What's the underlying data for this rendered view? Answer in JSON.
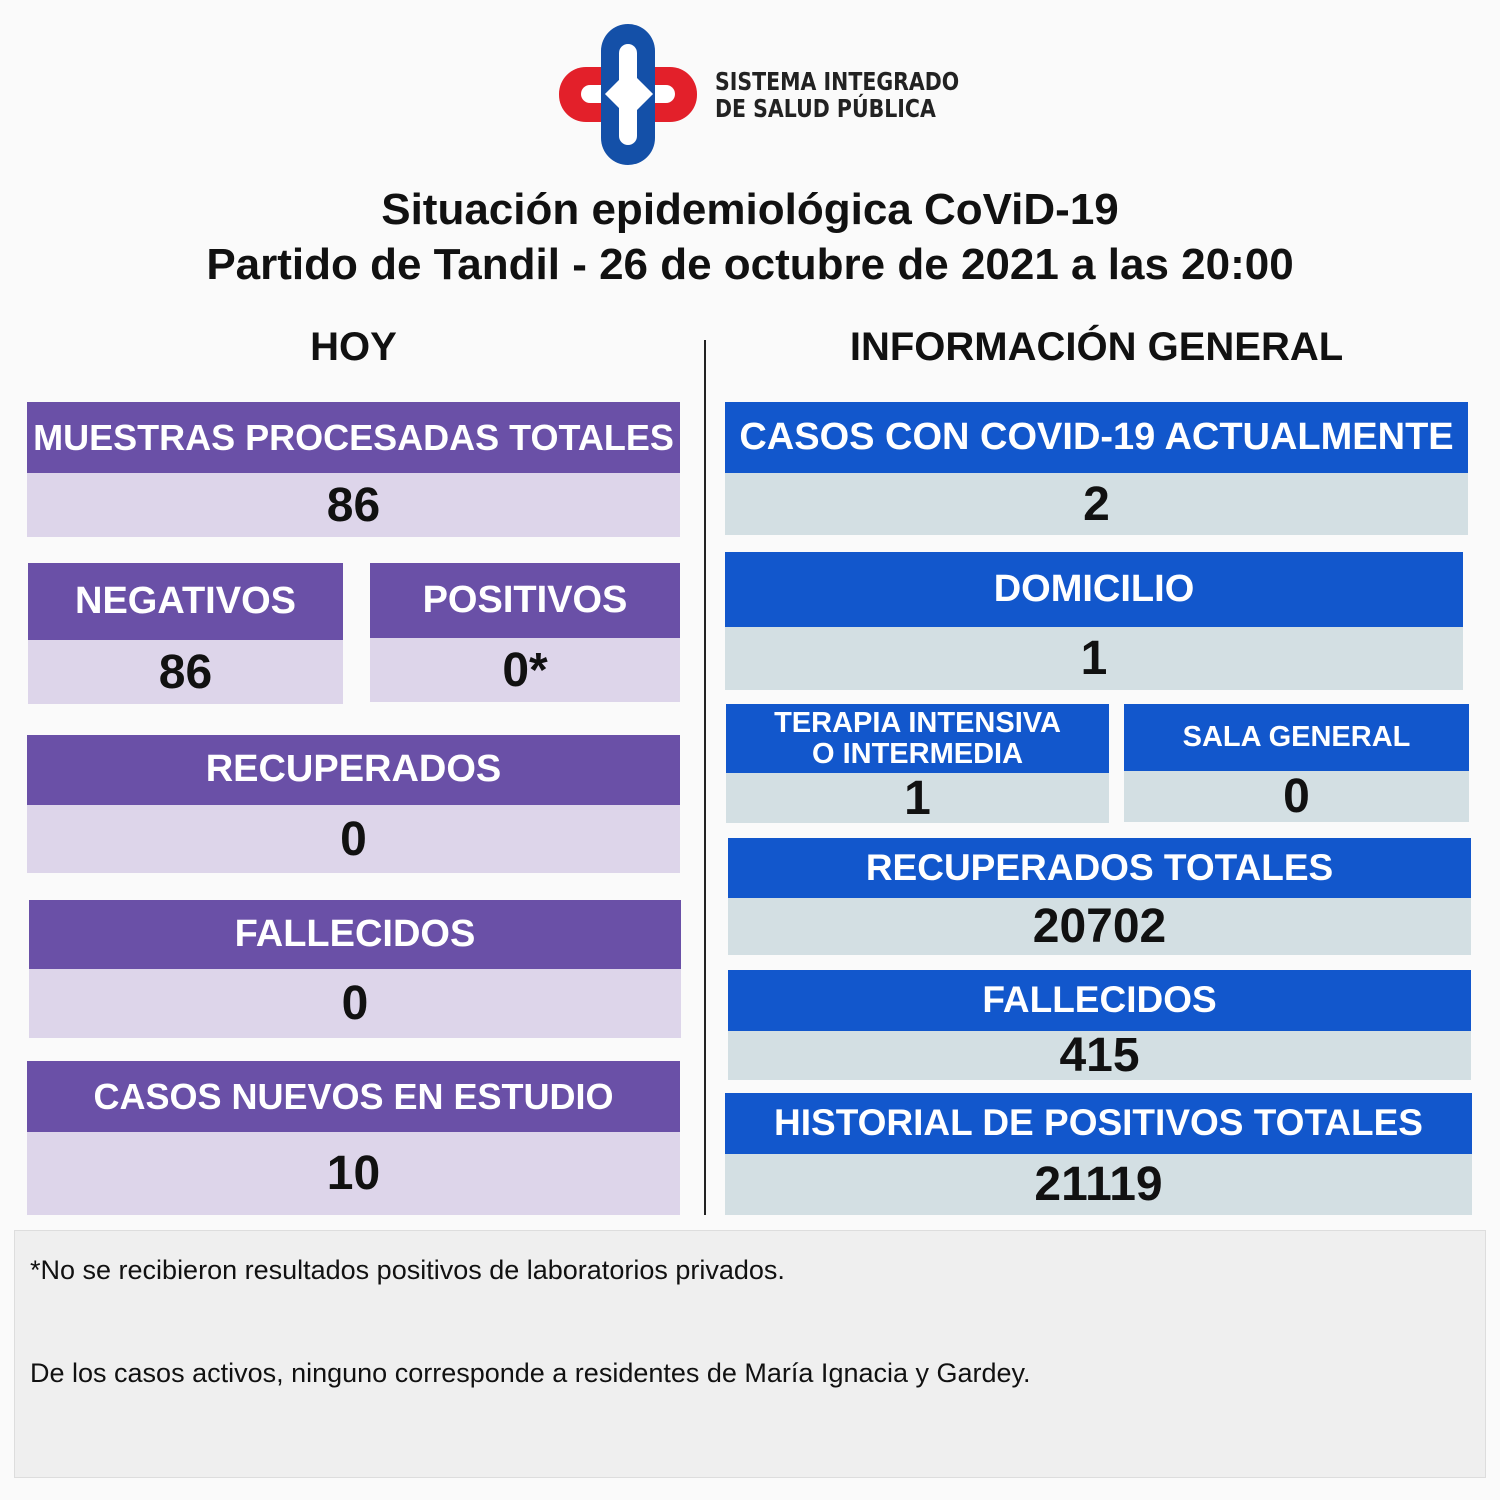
{
  "logo": {
    "line1": "SISTEMA INTEGRADO",
    "line2": "DE SALUD PÚBLICA",
    "colors": {
      "red": "#e3202a",
      "blue": "#1450a8"
    }
  },
  "title": {
    "line1": "Situación epidemiológica CoViD-19",
    "line2": "Partido de Tandil - 26 de octubre de 2021 a las 20:00"
  },
  "hoy": {
    "heading": "HOY",
    "muestras": {
      "label": "MUESTRAS PROCESADAS TOTALES",
      "value": "86"
    },
    "negativos": {
      "label": "NEGATIVOS",
      "value": "86"
    },
    "positivos": {
      "label": "POSITIVOS",
      "value": "0*"
    },
    "recuperados": {
      "label": "RECUPERADOS",
      "value": "0"
    },
    "fallecidos": {
      "label": "FALLECIDOS",
      "value": "0"
    },
    "nuevos": {
      "label": "CASOS NUEVOS EN ESTUDIO",
      "value": "10"
    }
  },
  "general": {
    "heading": "INFORMACIÓN GENERAL",
    "casos": {
      "label": "CASOS CON COVID-19 ACTUALMENTE",
      "value": "2"
    },
    "domicilio": {
      "label": "DOMICILIO",
      "value": "1"
    },
    "terapia": {
      "label1": "TERAPIA INTENSIVA",
      "label2": "O INTERMEDIA",
      "value": "1"
    },
    "sala": {
      "label": "SALA GENERAL",
      "value": "0"
    },
    "recuperados": {
      "label": "RECUPERADOS TOTALES",
      "value": "20702"
    },
    "fallecidos": {
      "label": "FALLECIDOS",
      "value": "415"
    },
    "historial": {
      "label": "HISTORIAL DE POSITIVOS TOTALES",
      "value": "21119"
    }
  },
  "notes": [
    "*No se recibieron resultados positivos de laboratorios privados.",
    "De los casos activos, ninguno corresponde a residentes de María Ignacia y Gardey."
  ],
  "colors": {
    "purple": "#6a50a7",
    "purple_light": "#ddd5ea",
    "blue": "#1257cc",
    "blue_light": "#d3dfe3"
  }
}
